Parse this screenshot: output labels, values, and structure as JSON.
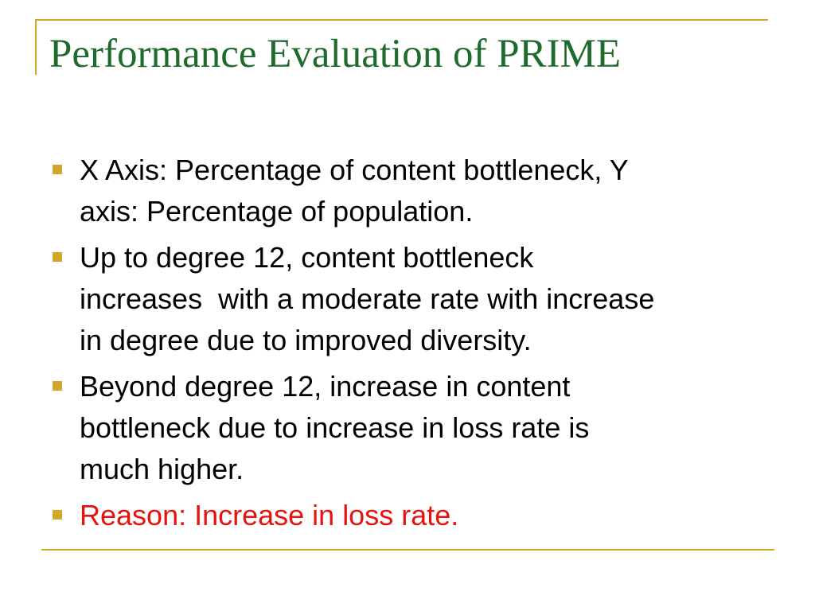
{
  "slide": {
    "title": "Performance Evaluation of PRIME",
    "accent_color": "#d4a62a",
    "title_color": "#1f6b2e",
    "emphasis_color": "#e8120c",
    "bullets": [
      "X Axis: Percentage of content bottleneck, Y\naxis: Percentage of population.",
      "Up to degree 12, content bottleneck\nincreases  with a moderate rate with increase\nin degree due to improved diversity.",
      "Beyond degree 12, increase in content\nbottleneck due to increase in loss rate is\nmuch higher.",
      "Reason: Increase in loss rate."
    ]
  }
}
